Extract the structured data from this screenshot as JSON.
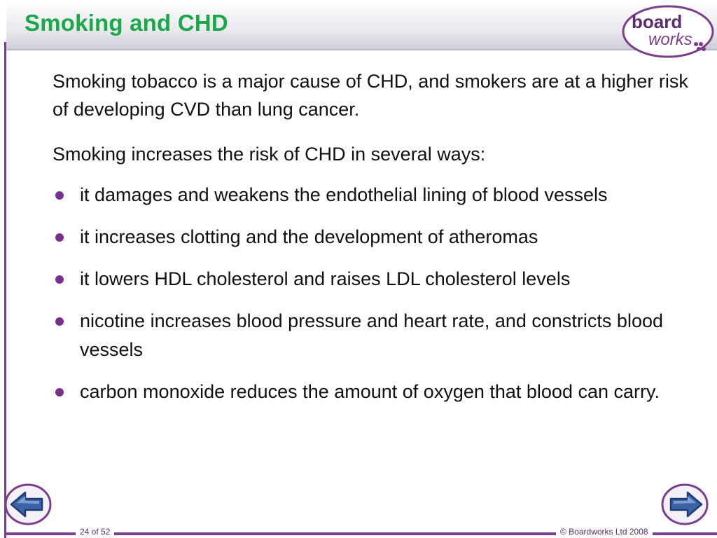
{
  "slide": {
    "title": "Smoking and CHD",
    "intro": "Smoking tobacco is a major cause of CHD, and smokers are at a higher risk of developing CVD than lung cancer.",
    "lead": "Smoking increases the risk of CHD in several ways:",
    "bullets": [
      "it damages and weakens the endothelial lining of blood vessels",
      "it increases clotting and the development of atheromas",
      "it lowers HDL cholesterol and raises LDL cholesterol levels",
      "nicotine increases blood pressure and heart rate, and constricts blood vessels",
      "carbon monoxide reduces the amount of oxygen that blood can carry."
    ]
  },
  "logo": {
    "word1": "board",
    "word2": "works"
  },
  "footer": {
    "page": "24 of 52",
    "copyright": "© Boardworks Ltd 2008"
  },
  "icons": {
    "prev": "arrow-left-icon",
    "next": "arrow-right-icon",
    "bullet": "bullet-dot-icon"
  },
  "colors": {
    "title": "#1aa84b",
    "accent": "#7a3f8a",
    "nav": "#3b63a6"
  }
}
